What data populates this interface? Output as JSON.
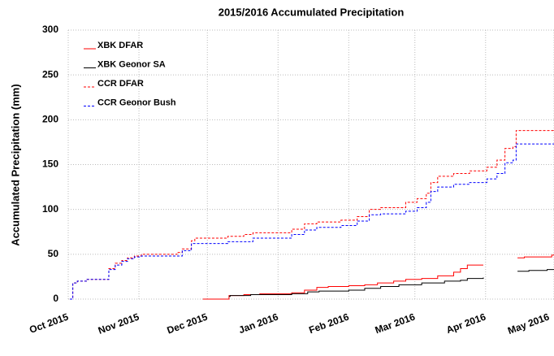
{
  "chart_data": {
    "type": "step",
    "title": "2015/2016 Accumulated Precipitation",
    "y_label": "Accumulated Precipitation (mm)",
    "xlim": [
      0,
      213
    ],
    "ylim": [
      0,
      300
    ],
    "xticks": [
      {
        "value": 0,
        "label": "Oct 2015"
      },
      {
        "value": 31,
        "label": "Nov 2015"
      },
      {
        "value": 61,
        "label": "Dec 2015"
      },
      {
        "value": 92,
        "label": "Jan 2016"
      },
      {
        "value": 123,
        "label": "Feb 2016"
      },
      {
        "value": 152,
        "label": "Mar 2016"
      },
      {
        "value": 183,
        "label": "Apr 2016"
      },
      {
        "value": 213,
        "label": "May 2016"
      }
    ],
    "yticks": [
      0,
      50,
      100,
      150,
      200,
      250,
      300
    ],
    "grid": true,
    "legend": "upper left",
    "series": [
      {
        "name": "XBK DFAR",
        "color": "#ff0000",
        "linestyle": "solid",
        "x": [
          59,
          70.5,
          77,
          84,
          98,
          103.6,
          109,
          114,
          123,
          130,
          135.6,
          142.7,
          148,
          155,
          162,
          169,
          172,
          175,
          182,
          null,
          197,
          200,
          212,
          213
        ],
        "values": [
          0,
          4,
          5,
          6,
          7,
          10,
          13,
          14,
          15,
          16,
          18,
          20,
          22,
          23,
          26,
          30,
          34,
          38,
          38,
          null,
          46,
          47,
          49,
          49
        ]
      },
      {
        "name": "XBK Geonor SA",
        "color": "#000000",
        "linestyle": "solid",
        "x": [
          70.5,
          71,
          80,
          98,
          105,
          110,
          123,
          130,
          137,
          145,
          155,
          165,
          172,
          175,
          182,
          null,
          197,
          202,
          210,
          213
        ],
        "values": [
          3,
          4,
          5,
          6,
          8,
          9,
          10,
          12,
          14,
          16,
          18,
          20,
          21,
          23,
          24,
          null,
          31,
          32,
          33,
          33
        ]
      },
      {
        "name": "CCR DFAR",
        "color": "#ff0000",
        "linestyle": "dashed",
        "x": [
          0.7,
          2,
          4,
          8,
          17.8,
          20.6,
          23.5,
          26,
          29,
          32,
          47.7,
          50,
          54,
          55.5,
          70,
          77,
          81,
          98,
          103.6,
          109,
          119.6,
          126.7,
          132,
          137,
          148,
          153,
          157,
          159,
          162,
          169,
          176,
          183.6,
          188,
          191.5,
          195,
          196.4,
          213
        ],
        "values": [
          0,
          18,
          20,
          22,
          34,
          40,
          43,
          46,
          48,
          50,
          52,
          56,
          65,
          68,
          70,
          72,
          74,
          78,
          84,
          86,
          88,
          92,
          100,
          102,
          108,
          112,
          118,
          130,
          137,
          140,
          143,
          147,
          155,
          168,
          170,
          188,
          188
        ]
      },
      {
        "name": "CCR Geonor Bush",
        "color": "#0000ff",
        "linestyle": "dashed",
        "x": [
          0.7,
          2,
          4,
          8,
          17.8,
          20.6,
          23.5,
          26,
          29,
          32,
          50,
          54,
          70,
          81,
          98,
          103.6,
          109,
          119.6,
          126.7,
          132,
          137,
          148,
          153,
          157,
          159,
          162,
          169,
          176,
          183.6,
          188,
          191.5,
          195,
          196.4,
          213
        ],
        "values": [
          0,
          18,
          20,
          22,
          33,
          38,
          42,
          45,
          47,
          48,
          54,
          62,
          64,
          68,
          72,
          77,
          80,
          82,
          87,
          94,
          95,
          98,
          102,
          108,
          120,
          125,
          128,
          130,
          134,
          140,
          152,
          155,
          173,
          173
        ]
      }
    ]
  }
}
